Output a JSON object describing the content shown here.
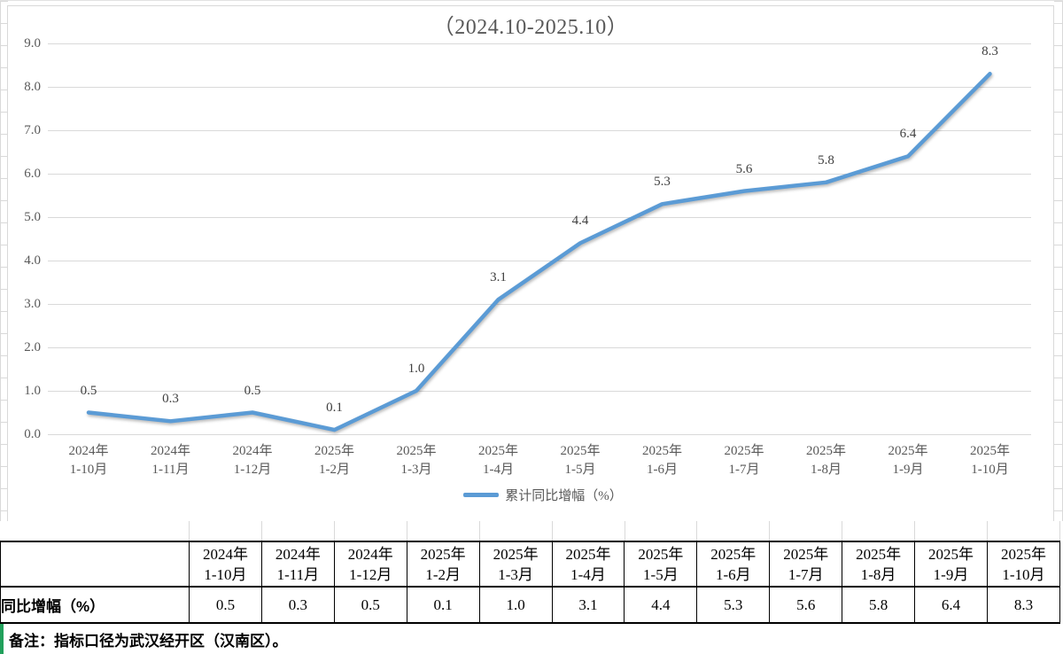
{
  "chart_data": {
    "type": "line",
    "title": "（2024.10-2025.10）",
    "categories": [
      "2024年\n1-10月",
      "2024年\n1-11月",
      "2024年\n1-12月",
      "2025年\n1-2月",
      "2025年\n1-3月",
      "2025年\n1-4月",
      "2025年\n1-5月",
      "2025年\n1-6月",
      "2025年\n1-7月",
      "2025年\n1-8月",
      "2025年\n1-9月",
      "2025年\n1-10月"
    ],
    "values": [
      0.5,
      0.3,
      0.5,
      0.1,
      1.0,
      3.1,
      4.4,
      5.3,
      5.6,
      5.8,
      6.4,
      8.3
    ],
    "data_labels": [
      "0.5",
      "0.3",
      "0.5",
      "0.1",
      "1.0",
      "3.1",
      "4.4",
      "5.3",
      "5.6",
      "5.8",
      "6.4",
      "8.3"
    ],
    "legend": [
      "累计同比增幅（%）"
    ],
    "legend_position": "bottom",
    "ylim": [
      0.0,
      9.0
    ],
    "ytick_step": 1.0,
    "ytick_labels": [
      "9.0",
      "8.0",
      "7.0",
      "6.0",
      "5.0",
      "4.0",
      "3.0",
      "2.0",
      "1.0",
      "0.0"
    ],
    "grid": true,
    "line_color": "#5B9BD5"
  },
  "table": {
    "row_label": "同比增幅（%）",
    "columns": [
      "2024年\n1-10月",
      "2024年\n1-11月",
      "2024年\n1-12月",
      "2025年\n1-2月",
      "2025年\n1-3月",
      "2025年\n1-4月",
      "2025年\n1-5月",
      "2025年\n1-6月",
      "2025年\n1-7月",
      "2025年\n1-8月",
      "2025年\n1-9月",
      "2025年\n1-10月"
    ],
    "values": [
      "0.5",
      "0.3",
      "0.5",
      "0.1",
      "1.0",
      "3.1",
      "4.4",
      "5.3",
      "5.6",
      "5.8",
      "6.4",
      "8.3"
    ]
  },
  "footnote": {
    "label": "备注：指标口径为武汉经开区（汉南区）。",
    "bar_color": "#21A05B"
  },
  "colors": {
    "gridline": "#D9D9D9",
    "axis_text": "#595959",
    "data_label_text": "#404040",
    "table_border": "#000000"
  }
}
